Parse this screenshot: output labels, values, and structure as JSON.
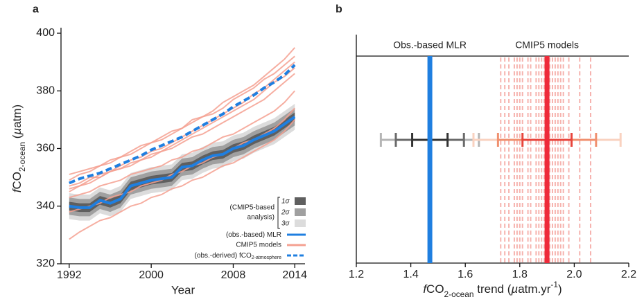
{
  "chart_data": [
    {
      "type": "line",
      "panel_label": "a",
      "xlabel": "Year",
      "ylabel": [
        {
          "text": "f",
          "italic": true
        },
        {
          "text": "CO"
        },
        {
          "text": "2-ocean",
          "sub": true
        },
        {
          "text": " ("
        },
        {
          "text": "µ",
          "italic": true
        },
        {
          "text": "atm)"
        }
      ],
      "x": [
        1992,
        1993,
        1994,
        1995,
        1996,
        1997,
        1998,
        1999,
        2000,
        2001,
        2002,
        2003,
        2004,
        2005,
        2006,
        2007,
        2008,
        2009,
        2010,
        2011,
        2012,
        2013,
        2014
      ],
      "xlim": [
        1991.2,
        2015
      ],
      "xticks": [
        1992,
        2000,
        2008,
        2014
      ],
      "ylim": [
        320,
        400
      ],
      "yticks": [
        320,
        340,
        360,
        380,
        400
      ],
      "bands_title": [
        "(CMIP5-based",
        "analysis)"
      ],
      "bands": [
        {
          "name": "1σ",
          "color": "#5f5f5f",
          "halfwidth": 1.5
        },
        {
          "name": "2σ",
          "color": "#a0a0a0",
          "halfwidth": 3
        },
        {
          "name": "3σ",
          "color": "#dcdcdc",
          "halfwidth": 4.5
        }
      ],
      "models": {
        "name": "CMIP5 models",
        "color": "#f4a090",
        "lines": [
          [
            351,
            352,
            353,
            354,
            356,
            357,
            359,
            361,
            362,
            364,
            366,
            367,
            370,
            371,
            373,
            376,
            378,
            380,
            382,
            385,
            388,
            391,
            395
          ],
          [
            349,
            351,
            352,
            354,
            355,
            357,
            358,
            360,
            362,
            363,
            365,
            367,
            369,
            371,
            372,
            374,
            377,
            379,
            381,
            384,
            386,
            389,
            392
          ],
          [
            346,
            347,
            349,
            351,
            352,
            354,
            356,
            357,
            359,
            360,
            362,
            364,
            366,
            368,
            370,
            372,
            374,
            376,
            379,
            381,
            384,
            387,
            390
          ],
          [
            347,
            348,
            350,
            350,
            352,
            353,
            355,
            356,
            357,
            359,
            360,
            362,
            364,
            365,
            367,
            369,
            371,
            373,
            375,
            377,
            380,
            383,
            386
          ],
          [
            343,
            344,
            345,
            347,
            348,
            349,
            351,
            352,
            353,
            354,
            356,
            357,
            359,
            360,
            362,
            364,
            365,
            367,
            369,
            371,
            373,
            376,
            380
          ],
          [
            338,
            339,
            340,
            341,
            343,
            344,
            345,
            347,
            348,
            349,
            351,
            352,
            354,
            355,
            357,
            358,
            360,
            362,
            363,
            365,
            367,
            370,
            374
          ],
          [
            328.5,
            331,
            333,
            335,
            336,
            338,
            340,
            341,
            343,
            344,
            346,
            347,
            349,
            350,
            352,
            354,
            355,
            357,
            359,
            361,
            363,
            366,
            370
          ],
          [
            345,
            347,
            348,
            350,
            352,
            353,
            354,
            356,
            358,
            359,
            361,
            363,
            365,
            367,
            369,
            371,
            373,
            375,
            377,
            380,
            383,
            385,
            388
          ]
        ]
      },
      "series": [
        {
          "name": [
            {
              "text": "(obs.-based) MLR"
            }
          ],
          "color": "#1f7fe0",
          "style": "solid",
          "values": [
            340,
            339.5,
            339.5,
            342,
            341,
            342.5,
            347,
            348,
            349,
            349.5,
            350,
            353.5,
            354,
            356,
            357.5,
            358,
            360,
            361,
            363,
            364.5,
            366,
            368.5,
            371
          ]
        },
        {
          "name": [
            {
              "text": "(obs.-derived) fCO"
            },
            {
              "text": "2-atmosphere",
              "sub": true
            }
          ],
          "color": "#1f7fe0",
          "style": "dashed",
          "values": [
            348,
            349.5,
            350.5,
            351.5,
            353,
            354.5,
            356,
            357.5,
            359.5,
            361,
            362.5,
            364,
            366,
            368,
            370,
            372,
            374.5,
            376.5,
            378.5,
            381,
            383,
            385.5,
            389
          ]
        }
      ]
    },
    {
      "type": "errorbar",
      "panel_label": "b",
      "xlabel": [
        {
          "text": "f",
          "italic": true
        },
        {
          "text": "CO"
        },
        {
          "text": "2-ocean",
          "sub": true
        },
        {
          "text": " trend ("
        },
        {
          "text": "µ",
          "italic": true
        },
        {
          "text": "atm.yr"
        },
        {
          "text": "-1",
          "sup": true
        },
        {
          "text": ")"
        }
      ],
      "xlim": [
        1.2,
        2.2
      ],
      "xticks": [
        1.2,
        1.4,
        1.6,
        1.8,
        {
          "value": 2,
          "label": "2.0"
        },
        2.2
      ],
      "groups": [
        {
          "name": "Obs.-based MLR",
          "color": "#1f7fe0",
          "value": 1.47,
          "errors": [
            0.065,
            0.125,
            0.18
          ],
          "error_colors": [
            "#333333",
            "#6a6a6a",
            "#b5b5b5"
          ]
        },
        {
          "name": "CMIP5 models",
          "color": "#ee2a3a",
          "value": 1.9,
          "errors": [
            0.09,
            0.18,
            0.27
          ],
          "error_colors": [
            "#e8453c",
            "#f0906f",
            "#f9d2c0"
          ],
          "member_color": "#f6b3ae",
          "members": [
            1.73,
            1.745,
            1.76,
            1.78,
            1.79,
            1.8,
            1.81,
            1.83,
            1.84,
            1.86,
            1.87,
            1.88,
            1.89,
            1.91,
            1.92,
            1.93,
            1.94,
            1.95,
            1.96,
            1.98,
            2.02,
            2.06
          ]
        }
      ]
    }
  ]
}
